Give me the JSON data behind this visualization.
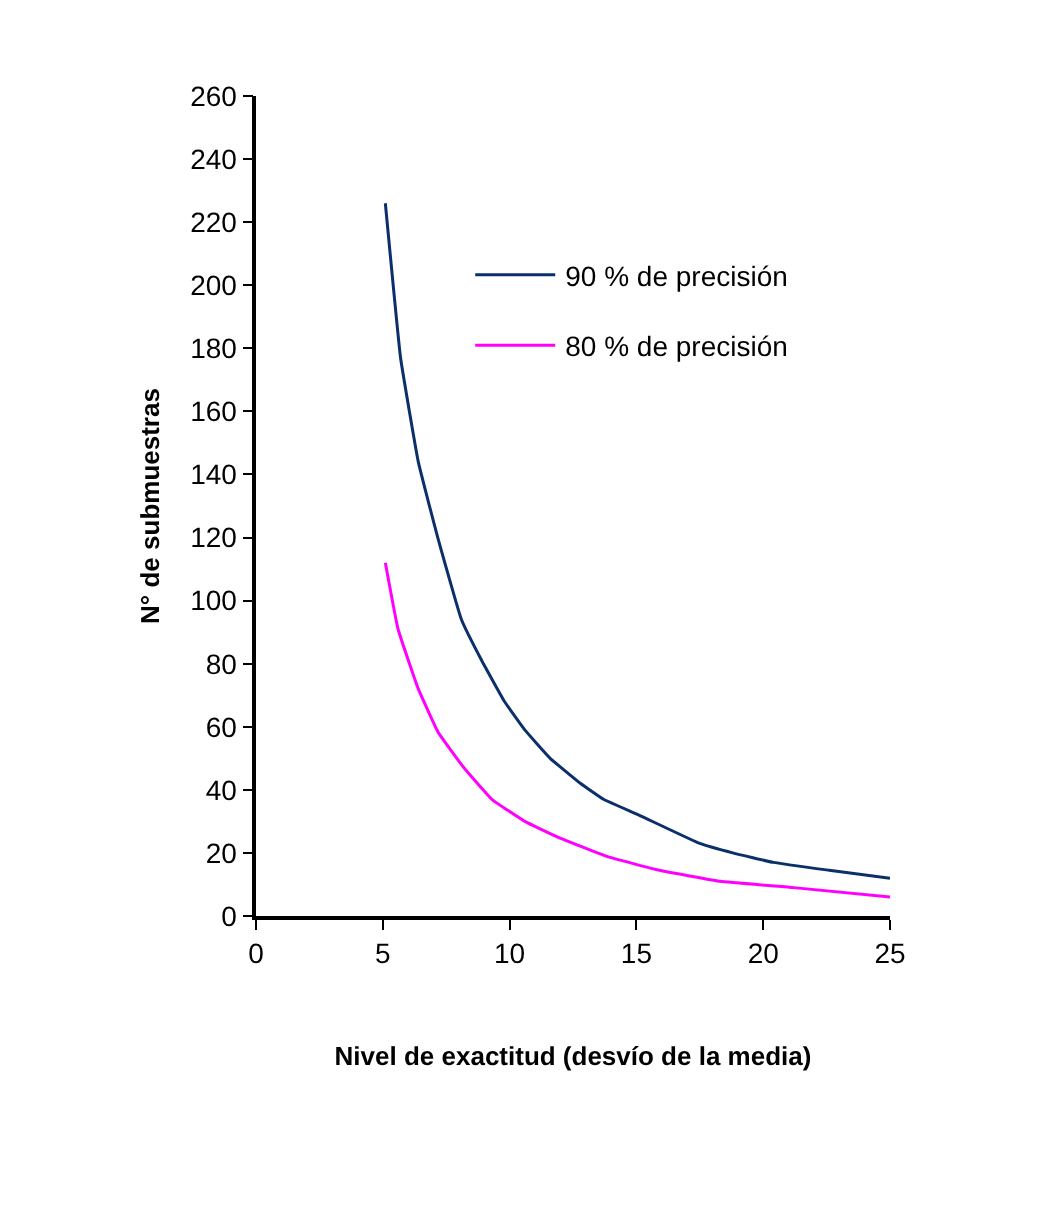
{
  "chart_data": {
    "type": "line",
    "xlabel": "Nivel de exactitud (desvío de la media)",
    "ylabel": "N° de submuestras",
    "xlim": [
      0,
      25
    ],
    "xticks": [
      0,
      5,
      10,
      15,
      20,
      25
    ],
    "ylim": [
      0,
      260
    ],
    "yticks": [
      0,
      20,
      40,
      60,
      80,
      100,
      120,
      140,
      160,
      180,
      200,
      220,
      240,
      260
    ],
    "legend": "top right",
    "marker": "none",
    "line_style": "solid",
    "series": [
      {
        "name": "90 % de precisión",
        "color": "#0a2f6b",
        "x": [
          5.1,
          5.7,
          6.4,
          7.2,
          8.1,
          8.9,
          9.8,
          10.6,
          11.6,
          12.8,
          13.7,
          15.1,
          17.5,
          18.8,
          20.4,
          22.6,
          25
        ],
        "values": [
          226,
          177,
          144,
          119,
          94,
          81,
          68,
          59,
          50,
          42,
          37,
          32,
          23,
          20,
          17,
          14.5,
          12
        ]
      },
      {
        "name": "80 % de precisión",
        "color": "#ff00ff",
        "x": [
          5.1,
          5.6,
          6.4,
          7.2,
          8.2,
          9.3,
          10.6,
          11.9,
          13.8,
          15.9,
          18.3,
          21.2,
          25
        ],
        "values": [
          112,
          91,
          72,
          58,
          47,
          37,
          30,
          25,
          19,
          14.5,
          11,
          9,
          6
        ]
      }
    ]
  }
}
